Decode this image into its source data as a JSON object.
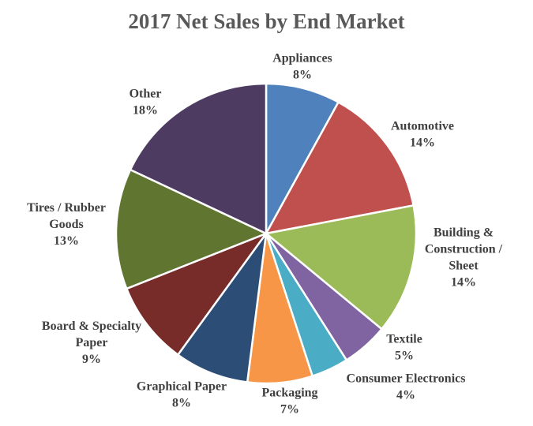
{
  "chart_data": {
    "type": "pie",
    "title": "2017 Net Sales by End Market",
    "legend": "none",
    "slices": [
      {
        "label": [
          "Appliances"
        ],
        "value": 8,
        "value_label": "8%",
        "color": "#4F81BD"
      },
      {
        "label": [
          "Automotive"
        ],
        "value": 14,
        "value_label": "14%",
        "color": "#C0504D"
      },
      {
        "label": [
          "Building &",
          "Construction /",
          "Sheet"
        ],
        "value": 14,
        "value_label": "14%",
        "color": "#9BBB59"
      },
      {
        "label": [
          "Textile"
        ],
        "value": 5,
        "value_label": "5%",
        "color": "#8064A2"
      },
      {
        "label": [
          "Consumer Electronics"
        ],
        "value": 4,
        "value_label": "4%",
        "color": "#4BACC6"
      },
      {
        "label": [
          "Packaging"
        ],
        "value": 7,
        "value_label": "7%",
        "color": "#F79646"
      },
      {
        "label": [
          "Graphical Paper"
        ],
        "value": 8,
        "value_label": "8%",
        "color": "#2C4D75"
      },
      {
        "label": [
          "Board & Specialty",
          "Paper"
        ],
        "value": 9,
        "value_label": "9%",
        "color": "#772C2A"
      },
      {
        "label": [
          "Tires / Rubber",
          "Goods"
        ],
        "value": 13,
        "value_label": "13%",
        "color": "#5F7530"
      },
      {
        "label": [
          "Other"
        ],
        "value": 18,
        "value_label": "18%",
        "color": "#4D3B62"
      }
    ]
  }
}
